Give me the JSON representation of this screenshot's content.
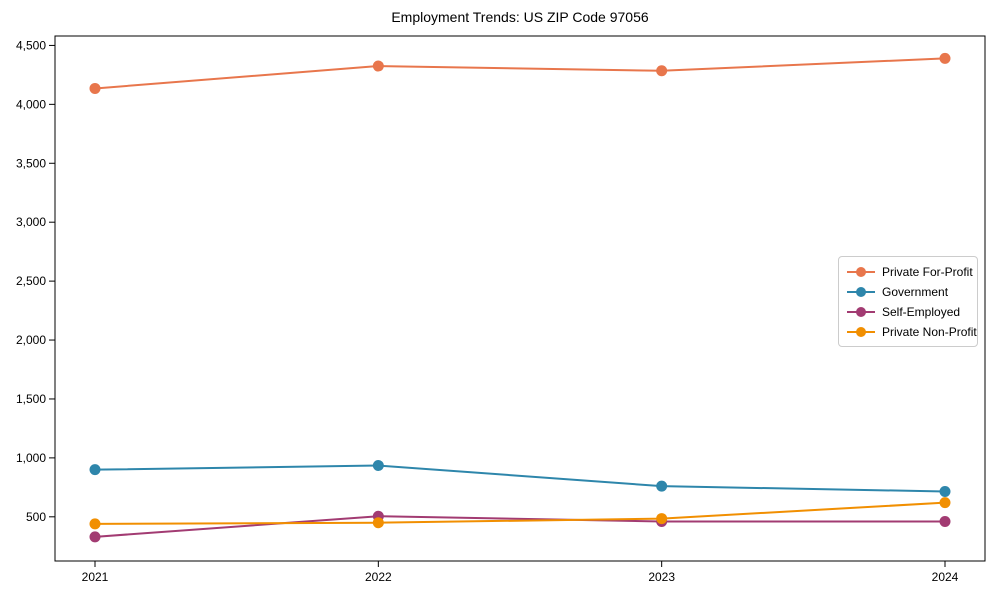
{
  "chart_data": {
    "type": "line",
    "title": "Employment Trends: US ZIP Code 97056",
    "x": [
      "2021",
      "2022",
      "2023",
      "2024"
    ],
    "xlabel": "",
    "ylabel": "",
    "ylim": [
      125,
      4580
    ],
    "yticks": [
      500,
      1000,
      1500,
      2000,
      2500,
      3000,
      3500,
      4000,
      4500
    ],
    "grid": false,
    "legend_position": "center right",
    "background_color": "#ffffff",
    "axis_color": "#000000",
    "marker": "circle",
    "series": [
      {
        "name": "Private For-Profit",
        "color": "#E8764C",
        "values": [
          4135,
          4325,
          4285,
          4390
        ]
      },
      {
        "name": "Government",
        "color": "#2E86AB",
        "values": [
          900,
          935,
          760,
          715
        ]
      },
      {
        "name": "Self-Employed",
        "color": "#A23B72",
        "values": [
          330,
          505,
          460,
          460
        ]
      },
      {
        "name": "Private Non-Profit",
        "color": "#F18F01",
        "values": [
          440,
          450,
          485,
          620
        ]
      }
    ]
  }
}
